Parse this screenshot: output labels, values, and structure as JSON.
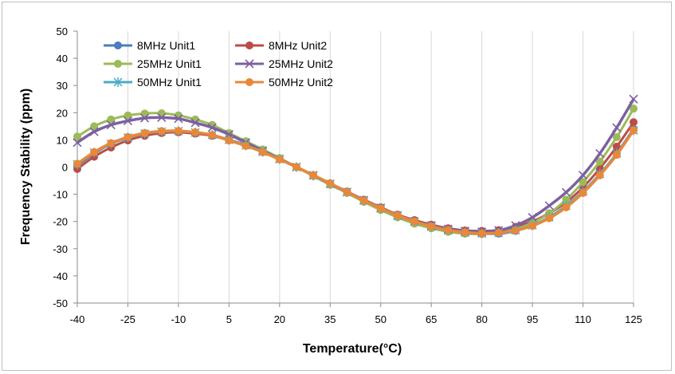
{
  "chart_data": {
    "type": "line",
    "title": "",
    "xlabel": "Temperature(°C)",
    "ylabel": "Frequency Stability (ppm)",
    "xlim": [
      -40,
      125
    ],
    "ylim": [
      -50,
      50
    ],
    "x_ticks": [
      -40,
      -25,
      -10,
      5,
      20,
      35,
      50,
      65,
      80,
      95,
      110,
      125
    ],
    "y_ticks": [
      50,
      40,
      30,
      20,
      10,
      0,
      -10,
      -20,
      -30,
      -40,
      -50
    ],
    "grid": "vertical",
    "legend_position": "top-left",
    "x": [
      -40,
      -35,
      -30,
      -25,
      -20,
      -15,
      -10,
      -5,
      0,
      5,
      10,
      15,
      20,
      25,
      30,
      35,
      40,
      45,
      50,
      55,
      60,
      65,
      70,
      75,
      80,
      85,
      90,
      95,
      100,
      105,
      110,
      115,
      120,
      125
    ],
    "series": [
      {
        "name": "8MHz Unit1",
        "color": "#4a7ebb",
        "marker": "circle",
        "values": [
          0.5,
          5,
          8.5,
          11,
          12.5,
          13,
          13,
          12.3,
          11.8,
          10,
          8.2,
          5.8,
          3,
          0,
          -3,
          -6,
          -9,
          -12.2,
          -15,
          -18,
          -20,
          -22,
          -23.5,
          -24.3,
          -24.5,
          -24.5,
          -23.5,
          -21.5,
          -18.5,
          -14.5,
          -9.5,
          -3,
          5,
          14
        ]
      },
      {
        "name": "8MHz Unit2",
        "color": "#be4b48",
        "marker": "circle",
        "values": [
          -0.7,
          3.8,
          7.2,
          9.8,
          11.5,
          12.5,
          12.8,
          12.3,
          11.5,
          9.8,
          8,
          5.5,
          3,
          0,
          -3,
          -6,
          -9,
          -12,
          -14.8,
          -17.5,
          -19.5,
          -21.2,
          -22.5,
          -23.3,
          -23.5,
          -23.2,
          -22,
          -20,
          -17,
          -13,
          -7.5,
          -0.5,
          7.5,
          16.5
        ]
      },
      {
        "name": "25MHz Unit1",
        "color": "#9bbb59",
        "marker": "circle",
        "values": [
          11.2,
          15,
          17.5,
          19,
          19.7,
          19.8,
          19,
          17.5,
          15.5,
          12.5,
          9.5,
          6.5,
          3.3,
          0,
          -3.3,
          -6.5,
          -9.5,
          -12.8,
          -15.8,
          -18.5,
          -20.8,
          -22.5,
          -23.8,
          -24.5,
          -24.6,
          -24,
          -22.8,
          -20.5,
          -17,
          -12,
          -5.5,
          2,
          11,
          21.5
        ]
      },
      {
        "name": "25MHz Unit2",
        "color": "#7d60a0",
        "marker": "x",
        "values": [
          9,
          13,
          15.5,
          17,
          18,
          18.2,
          17.8,
          16.3,
          14.5,
          12,
          9,
          6,
          3,
          0,
          -3,
          -6.2,
          -9.2,
          -12.2,
          -15,
          -17.8,
          -20,
          -21.5,
          -22.8,
          -23.5,
          -23.8,
          -23.3,
          -21.5,
          -18.5,
          -14.2,
          -9.3,
          -3,
          5,
          14.5,
          25
        ]
      },
      {
        "name": "50MHz Unit1",
        "color": "#4bacc6",
        "marker": "star",
        "values": [
          1,
          5.3,
          8.5,
          10.8,
          12.3,
          13,
          13.2,
          12.7,
          11.8,
          10,
          8,
          5.6,
          2.9,
          0,
          -3.1,
          -6.2,
          -9.2,
          -12.3,
          -15.2,
          -17.9,
          -20,
          -21.9,
          -23.3,
          -24.1,
          -24.4,
          -24.2,
          -23.2,
          -21.4,
          -18.4,
          -14.2,
          -9,
          -2.5,
          5,
          13.5
        ]
      },
      {
        "name": "50MHz Unit2",
        "color": "#e8883a",
        "marker": "circle",
        "values": [
          1.2,
          5.5,
          8.8,
          11,
          12.5,
          13.2,
          13.3,
          12.8,
          11.8,
          9.8,
          7.8,
          5.5,
          2.8,
          0,
          -3,
          -6,
          -9.2,
          -12.3,
          -15.2,
          -17.8,
          -20,
          -21.8,
          -23.2,
          -24,
          -24.4,
          -24.2,
          -23.3,
          -21.6,
          -18.8,
          -14.8,
          -9.5,
          -3,
          4.5,
          13.5
        ]
      }
    ]
  }
}
